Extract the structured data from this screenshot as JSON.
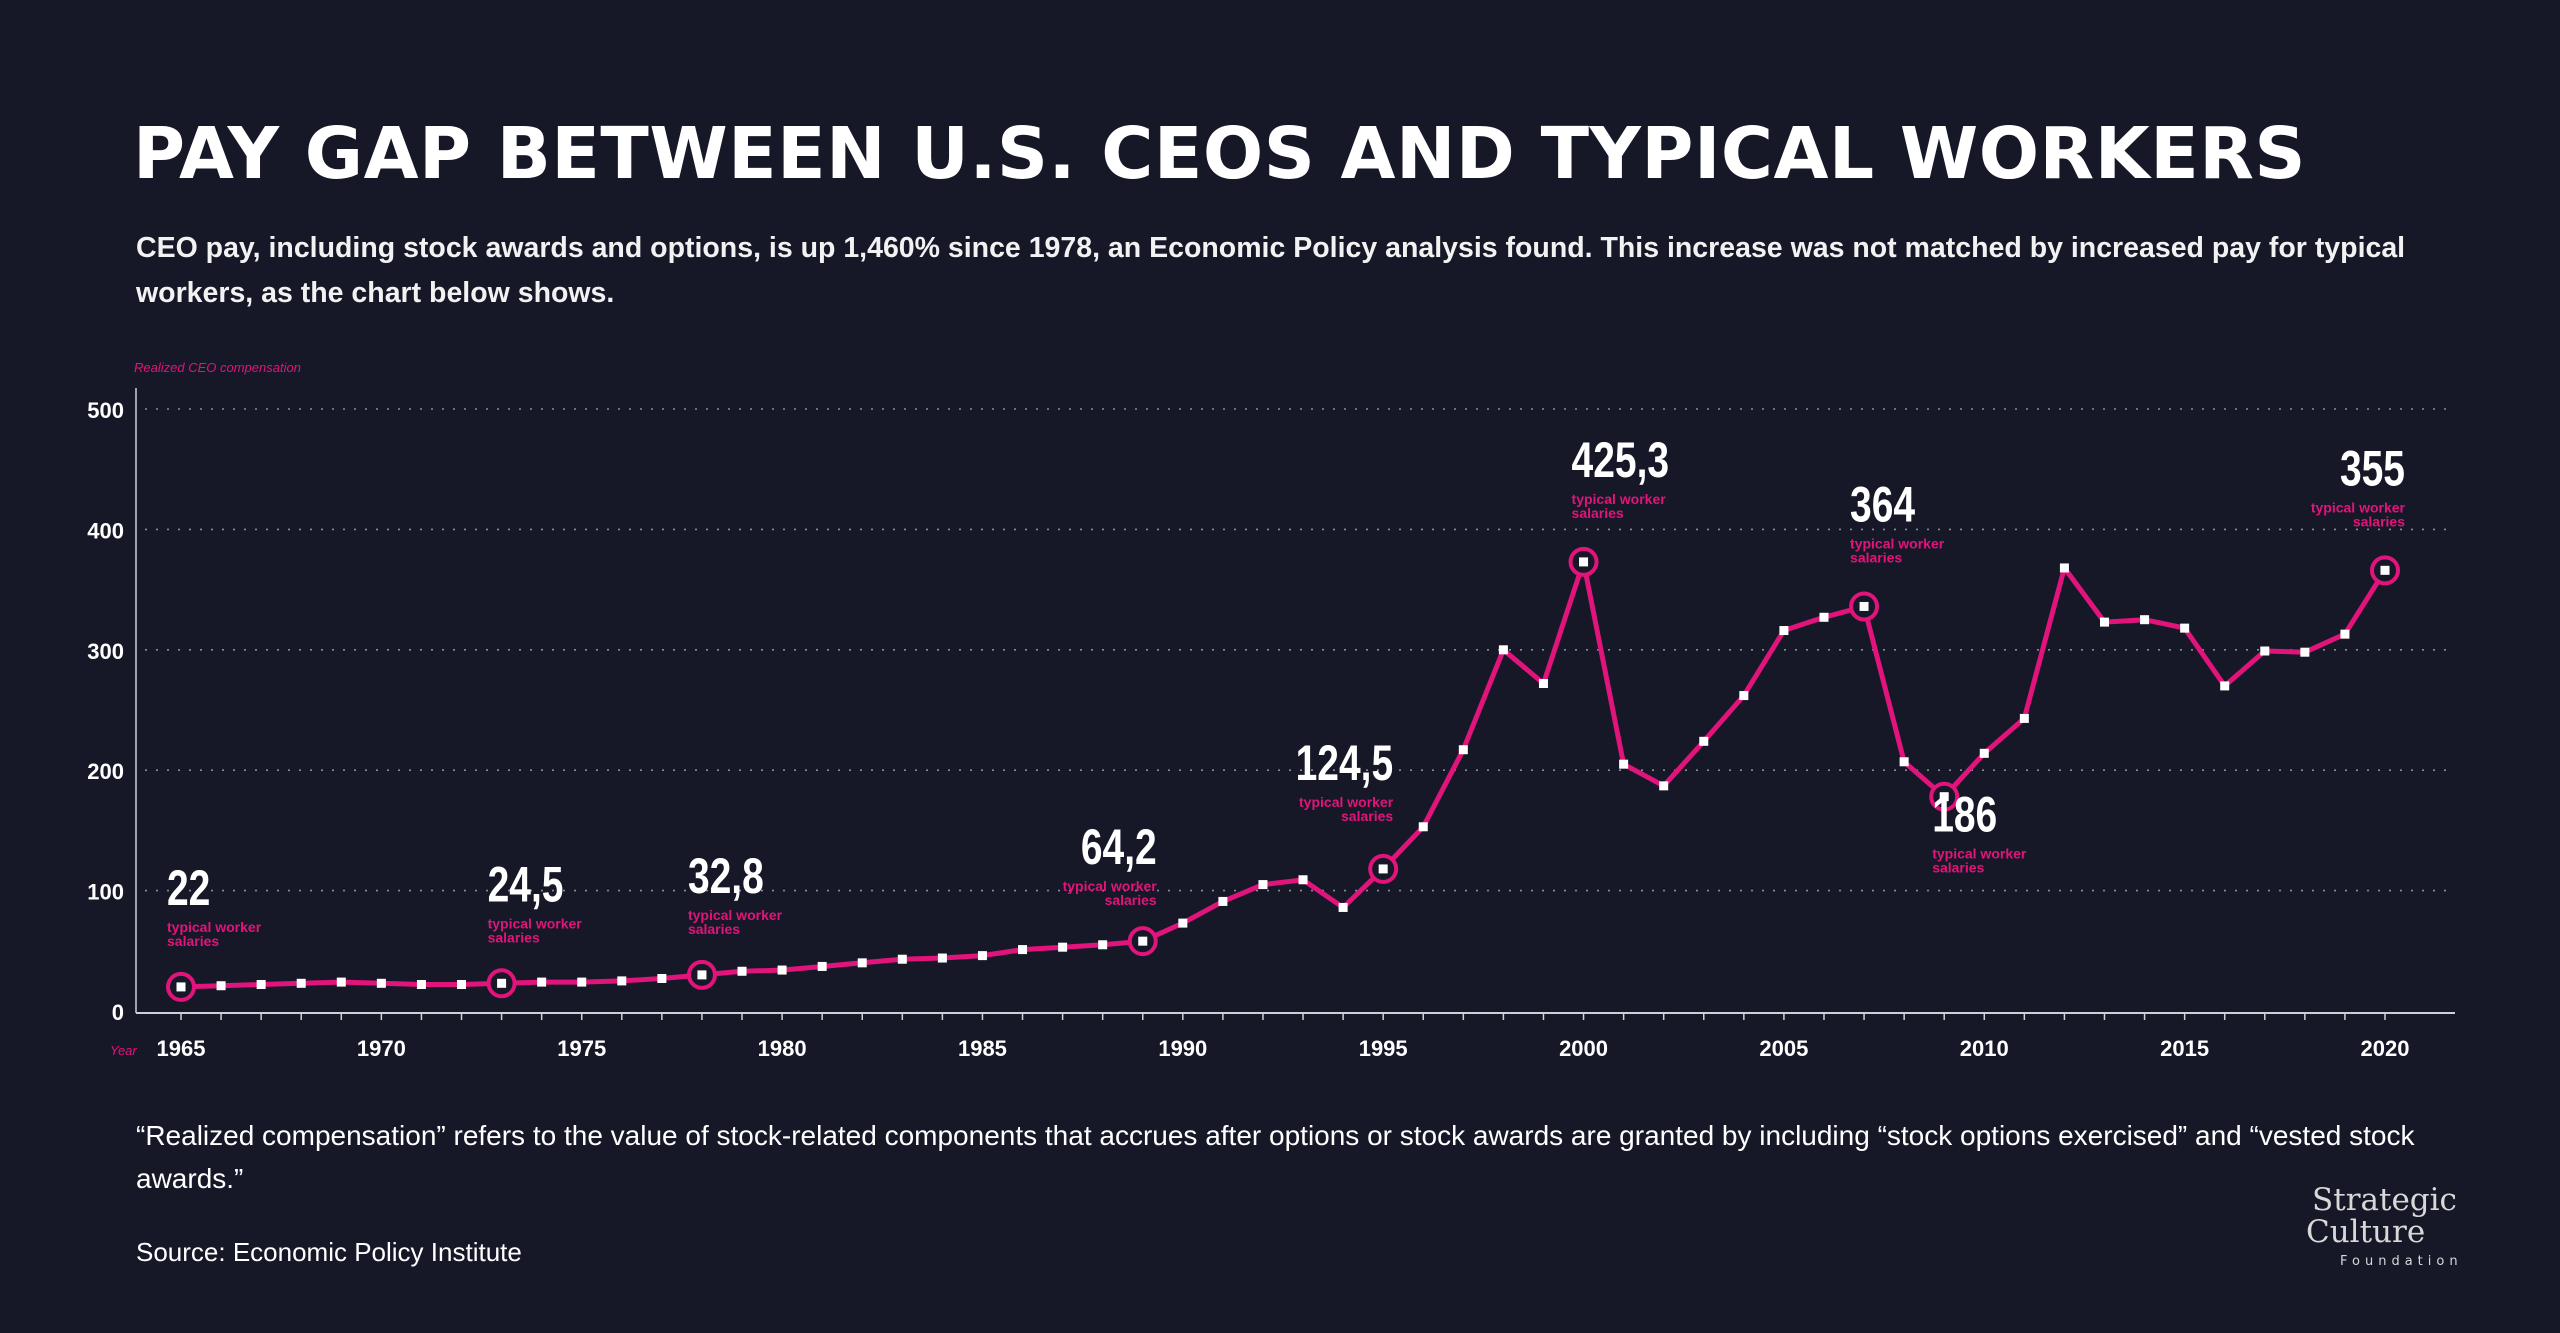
{
  "title": "PAY GAP BETWEEN U.S. CEOS AND TYPICAL WORKERS",
  "subtitle": "CEO pay, including stock awards and options, is up 1,460% since 1978, an Economic Policy analysis found. This increase was not matched by increased pay for typical workers, as the chart below shows.",
  "footnote": "“Realized compensation” refers to the value of stock-related components that accrues after options or stock awards are granted by including “stock options exercised” and “vested stock awards.”",
  "source": "Source: Economic Policy Institute",
  "logo": {
    "line1": "Strategic",
    "line2": "Culture",
    "line3": "Foundation"
  },
  "colors": {
    "background": "#161828",
    "line": "#e0147a",
    "text": "#ffffff",
    "grid": "#8a8c99"
  },
  "chart_data": {
    "type": "line",
    "ylabel": "Realized CEO compensation",
    "xlabel": "Year",
    "ylim": [
      0,
      500
    ],
    "xlim": [
      1965,
      2020
    ],
    "yticks": [
      0,
      100,
      200,
      300,
      400,
      500
    ],
    "xticks": [
      1965,
      1970,
      1975,
      1980,
      1985,
      1990,
      1995,
      2000,
      2005,
      2010,
      2015,
      2020
    ],
    "grid": "horizontal dotted",
    "series": [
      {
        "x": [
          1965,
          1966,
          1967,
          1968,
          1969,
          1970,
          1971,
          1972,
          1973,
          1974,
          1975,
          1976,
          1977,
          1978,
          1979,
          1980,
          1981,
          1982,
          1983,
          1984,
          1985,
          1986,
          1987,
          1988,
          1989,
          1990,
          1991,
          1992,
          1993,
          1994,
          1995,
          1996,
          1997,
          1998,
          1999,
          2000,
          2001,
          2002,
          2003,
          2004,
          2005,
          2006,
          2007,
          2008,
          2009,
          2010,
          2011,
          2012,
          2013,
          2014,
          2015,
          2016,
          2017,
          2018,
          2019,
          2020
        ],
        "values": [
          20,
          21,
          22,
          23,
          24,
          23,
          22,
          22,
          23,
          24,
          24,
          25,
          27,
          30,
          33,
          34,
          37,
          40,
          43,
          44,
          46,
          51,
          53,
          55,
          58,
          73,
          91,
          105,
          109,
          86,
          118,
          153,
          217,
          300,
          272,
          373,
          205,
          187,
          224,
          262,
          316,
          327,
          336,
          207,
          178,
          214,
          243,
          368,
          323,
          325,
          318,
          270,
          299,
          298,
          313,
          366
        ]
      }
    ],
    "annotations": [
      {
        "x": 1965,
        "label": "22",
        "sub": "typical worker salaries"
      },
      {
        "x": 1973,
        "label": "24,5",
        "sub": "typical worker salaries"
      },
      {
        "x": 1978,
        "label": "32,8",
        "sub": "typical worker salaries"
      },
      {
        "x": 1989,
        "label": "64,2",
        "sub": "typical worker salaries"
      },
      {
        "x": 1995,
        "label": "124,5",
        "sub": "typical worker salaries"
      },
      {
        "x": 2000,
        "label": "425,3",
        "sub": "typical worker salaries"
      },
      {
        "x": 2007,
        "label": "364",
        "sub": "typical worker salaries"
      },
      {
        "x": 2009,
        "label": "186",
        "sub": "typical worker salaries"
      },
      {
        "x": 2020,
        "label": "355",
        "sub": "typical worker salaries"
      }
    ]
  }
}
